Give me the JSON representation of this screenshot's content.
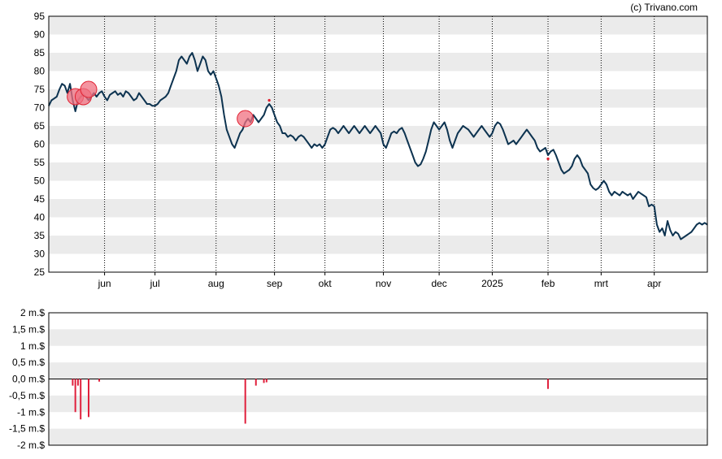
{
  "copyright": "(c) Trivano.com",
  "colors": {
    "band": "#ebebeb",
    "price_line": "#0d3350",
    "volume_bar": "#e0203c",
    "marker_fill": "#f07080",
    "marker_stroke": "#e02030",
    "grid_vertical": "#000000"
  },
  "chart_data": [
    {
      "type": "line",
      "title": "",
      "ylim": [
        25,
        95
      ],
      "y_ticks": [
        25,
        30,
        35,
        40,
        45,
        50,
        55,
        60,
        65,
        70,
        75,
        80,
        85,
        90,
        95
      ],
      "x_range_index": [
        0,
        248
      ],
      "x_tick_labels": [
        {
          "label": "jun",
          "index": 21
        },
        {
          "label": "jul",
          "index": 40
        },
        {
          "label": "aug",
          "index": 63
        },
        {
          "label": "sep",
          "index": 85
        },
        {
          "label": "okt",
          "index": 104
        },
        {
          "label": "nov",
          "index": 126
        },
        {
          "label": "dec",
          "index": 147
        },
        {
          "label": "2025",
          "index": 167
        },
        {
          "label": "feb",
          "index": 188
        },
        {
          "label": "mrt",
          "index": 208
        },
        {
          "label": "apr",
          "index": 228
        }
      ],
      "series": [
        {
          "points": [
            [
              0,
              70.5
            ],
            [
              1,
              72
            ],
            [
              2,
              72.5
            ],
            [
              3,
              73
            ],
            [
              4,
              75
            ],
            [
              5,
              76.5
            ],
            [
              6,
              76
            ],
            [
              7,
              74
            ],
            [
              8,
              76.5
            ],
            [
              9,
              72
            ],
            [
              10,
              69
            ],
            [
              11,
              72
            ],
            [
              12,
              73
            ],
            [
              13,
              73.5
            ],
            [
              14,
              73
            ],
            [
              15,
              72
            ],
            [
              16,
              73
            ],
            [
              17,
              74
            ],
            [
              18,
              73
            ],
            [
              19,
              74
            ],
            [
              20,
              74.5
            ],
            [
              21,
              73
            ],
            [
              22,
              72
            ],
            [
              23,
              73.5
            ],
            [
              24,
              74
            ],
            [
              25,
              74.5
            ],
            [
              26,
              73.5
            ],
            [
              27,
              74
            ],
            [
              28,
              73
            ],
            [
              29,
              74.5
            ],
            [
              30,
              74
            ],
            [
              31,
              73
            ],
            [
              32,
              72
            ],
            [
              33,
              72.5
            ],
            [
              34,
              74
            ],
            [
              35,
              73
            ],
            [
              36,
              72
            ],
            [
              37,
              71
            ],
            [
              38,
              71
            ],
            [
              39,
              70.5
            ],
            [
              40,
              70.5
            ],
            [
              41,
              71
            ],
            [
              42,
              72
            ],
            [
              43,
              72.5
            ],
            [
              44,
              73
            ],
            [
              45,
              74
            ],
            [
              46,
              76
            ],
            [
              47,
              78
            ],
            [
              48,
              80
            ],
            [
              49,
              83
            ],
            [
              50,
              84
            ],
            [
              51,
              83
            ],
            [
              52,
              82
            ],
            [
              53,
              84
            ],
            [
              54,
              85
            ],
            [
              55,
              83
            ],
            [
              56,
              80
            ],
            [
              57,
              82
            ],
            [
              58,
              84
            ],
            [
              59,
              83
            ],
            [
              60,
              80
            ],
            [
              61,
              79
            ],
            [
              62,
              80
            ],
            [
              63,
              78
            ],
            [
              64,
              76
            ],
            [
              65,
              73
            ],
            [
              66,
              68
            ],
            [
              67,
              64
            ],
            [
              68,
              62
            ],
            [
              69,
              60
            ],
            [
              70,
              59
            ],
            [
              71,
              61
            ],
            [
              72,
              63
            ],
            [
              73,
              64
            ],
            [
              74,
              66
            ],
            [
              75,
              67
            ],
            [
              76,
              66
            ],
            [
              77,
              68
            ],
            [
              78,
              67
            ],
            [
              79,
              66
            ],
            [
              80,
              67
            ],
            [
              81,
              68
            ],
            [
              82,
              70
            ],
            [
              83,
              71
            ],
            [
              84,
              70
            ],
            [
              85,
              68
            ],
            [
              86,
              66
            ],
            [
              87,
              65
            ],
            [
              88,
              63
            ],
            [
              89,
              63
            ],
            [
              90,
              62
            ],
            [
              91,
              62.5
            ],
            [
              92,
              62
            ],
            [
              93,
              61
            ],
            [
              94,
              62
            ],
            [
              95,
              62.5
            ],
            [
              96,
              62
            ],
            [
              97,
              61
            ],
            [
              98,
              60
            ],
            [
              99,
              59
            ],
            [
              100,
              60
            ],
            [
              101,
              59.5
            ],
            [
              102,
              60
            ],
            [
              103,
              59
            ],
            [
              104,
              60
            ],
            [
              105,
              62
            ],
            [
              106,
              64
            ],
            [
              107,
              64.5
            ],
            [
              108,
              64
            ],
            [
              109,
              63
            ],
            [
              110,
              64
            ],
            [
              111,
              65
            ],
            [
              112,
              64
            ],
            [
              113,
              63
            ],
            [
              114,
              64
            ],
            [
              115,
              65
            ],
            [
              116,
              64
            ],
            [
              117,
              63
            ],
            [
              118,
              64
            ],
            [
              119,
              65
            ],
            [
              120,
              64
            ],
            [
              121,
              63
            ],
            [
              122,
              64
            ],
            [
              123,
              65
            ],
            [
              124,
              64
            ],
            [
              125,
              63
            ],
            [
              126,
              60
            ],
            [
              127,
              59
            ],
            [
              128,
              61
            ],
            [
              129,
              63
            ],
            [
              130,
              63.5
            ],
            [
              131,
              63
            ],
            [
              132,
              64
            ],
            [
              133,
              64.5
            ],
            [
              134,
              63
            ],
            [
              135,
              61
            ],
            [
              136,
              59
            ],
            [
              137,
              57
            ],
            [
              138,
              55
            ],
            [
              139,
              54
            ],
            [
              140,
              54.5
            ],
            [
              141,
              56
            ],
            [
              142,
              58
            ],
            [
              143,
              61
            ],
            [
              144,
              64
            ],
            [
              145,
              66
            ],
            [
              146,
              65
            ],
            [
              147,
              64
            ],
            [
              148,
              65
            ],
            [
              149,
              66
            ],
            [
              150,
              64
            ],
            [
              151,
              61
            ],
            [
              152,
              59
            ],
            [
              153,
              61
            ],
            [
              154,
              63
            ],
            [
              155,
              64
            ],
            [
              156,
              65
            ],
            [
              157,
              64.5
            ],
            [
              158,
              64
            ],
            [
              159,
              63
            ],
            [
              160,
              62
            ],
            [
              161,
              63
            ],
            [
              162,
              64
            ],
            [
              163,
              65
            ],
            [
              164,
              64
            ],
            [
              165,
              63
            ],
            [
              166,
              62
            ],
            [
              167,
              63
            ],
            [
              168,
              65
            ],
            [
              169,
              66
            ],
            [
              170,
              65.5
            ],
            [
              171,
              64
            ],
            [
              172,
              62
            ],
            [
              173,
              60
            ],
            [
              174,
              60.5
            ],
            [
              175,
              61
            ],
            [
              176,
              60
            ],
            [
              177,
              61
            ],
            [
              178,
              62
            ],
            [
              179,
              63
            ],
            [
              180,
              64
            ],
            [
              181,
              63
            ],
            [
              182,
              62
            ],
            [
              183,
              61
            ],
            [
              184,
              59
            ],
            [
              185,
              58
            ],
            [
              186,
              58.5
            ],
            [
              187,
              59
            ],
            [
              188,
              57
            ],
            [
              189,
              58
            ],
            [
              190,
              58.5
            ],
            [
              191,
              57
            ],
            [
              192,
              55
            ],
            [
              193,
              53
            ],
            [
              194,
              52
            ],
            [
              195,
              52.5
            ],
            [
              196,
              53
            ],
            [
              197,
              54
            ],
            [
              198,
              56
            ],
            [
              199,
              57
            ],
            [
              200,
              56
            ],
            [
              201,
              54
            ],
            [
              202,
              53
            ],
            [
              203,
              52
            ],
            [
              204,
              49
            ],
            [
              205,
              48
            ],
            [
              206,
              47.5
            ],
            [
              207,
              48
            ],
            [
              208,
              49
            ],
            [
              209,
              50
            ],
            [
              210,
              49
            ],
            [
              211,
              47
            ],
            [
              212,
              46
            ],
            [
              213,
              47
            ],
            [
              214,
              46.5
            ],
            [
              215,
              46
            ],
            [
              216,
              47
            ],
            [
              217,
              46.5
            ],
            [
              218,
              46
            ],
            [
              219,
              46.5
            ],
            [
              220,
              45
            ],
            [
              221,
              46
            ],
            [
              222,
              47
            ],
            [
              223,
              46.5
            ],
            [
              224,
              46
            ],
            [
              225,
              45.5
            ],
            [
              226,
              43
            ],
            [
              227,
              43.5
            ],
            [
              228,
              43
            ],
            [
              229,
              38
            ],
            [
              230,
              36
            ],
            [
              231,
              37
            ],
            [
              232,
              35
            ],
            [
              233,
              39
            ],
            [
              234,
              36.5
            ],
            [
              235,
              35
            ],
            [
              236,
              36
            ],
            [
              237,
              35.5
            ],
            [
              238,
              34
            ],
            [
              239,
              34.5
            ],
            [
              240,
              35
            ],
            [
              241,
              35.5
            ],
            [
              242,
              36
            ],
            [
              243,
              37
            ],
            [
              244,
              38
            ],
            [
              245,
              38.5
            ],
            [
              246,
              38
            ],
            [
              247,
              38.5
            ],
            [
              248,
              38
            ]
          ]
        }
      ],
      "markers": [
        {
          "type": "circle",
          "index": 10,
          "value": 73,
          "size": "large"
        },
        {
          "type": "circle",
          "index": 13,
          "value": 73,
          "size": "large"
        },
        {
          "type": "circle",
          "index": 15,
          "value": 75,
          "size": "large"
        },
        {
          "type": "circle",
          "index": 74,
          "value": 67,
          "size": "large"
        },
        {
          "type": "point",
          "index": 83,
          "value": 72,
          "size": "small"
        },
        {
          "type": "point",
          "index": 188,
          "value": 56,
          "size": "small"
        }
      ]
    },
    {
      "type": "bar",
      "title": "",
      "ylim": [
        -2,
        2
      ],
      "y_ticks": [
        {
          "value": 2,
          "label": "2 m.$"
        },
        {
          "value": 1.5,
          "label": "1,5 m.$"
        },
        {
          "value": 1,
          "label": "1 m.$"
        },
        {
          "value": 0.5,
          "label": "0,5 m.$"
        },
        {
          "value": 0,
          "label": "0,0 m.$"
        },
        {
          "value": -0.5,
          "label": "-0,5 m.$"
        },
        {
          "value": -1,
          "label": "-1 m.$"
        },
        {
          "value": -1.5,
          "label": "-1,5 m.$"
        },
        {
          "value": -2,
          "label": "-2 m.$"
        }
      ],
      "bars": [
        {
          "index": 9,
          "value": -0.2
        },
        {
          "index": 10,
          "value": -1.0
        },
        {
          "index": 11,
          "value": -0.2
        },
        {
          "index": 12,
          "value": -1.22
        },
        {
          "index": 15,
          "value": -1.15
        },
        {
          "index": 19,
          "value": -0.08
        },
        {
          "index": 74,
          "value": -1.35
        },
        {
          "index": 78,
          "value": -0.2
        },
        {
          "index": 81,
          "value": -0.12
        },
        {
          "index": 82,
          "value": -0.1
        },
        {
          "index": 188,
          "value": -0.3
        }
      ]
    }
  ]
}
